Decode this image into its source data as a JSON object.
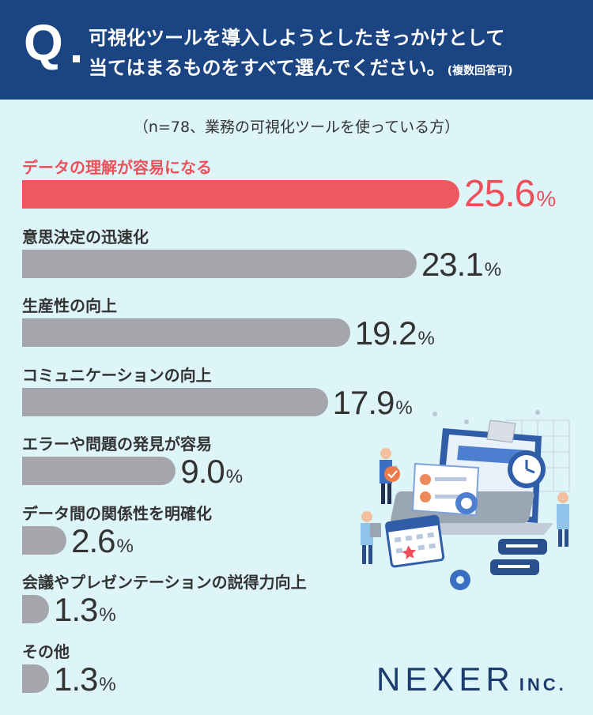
{
  "header": {
    "q_mark": "Q",
    "line1": "可視化ツールを導入しようとしたきっかけとして",
    "line2": "当てはまるものをすべて選んでください。",
    "note": "(複数回答可)"
  },
  "sample_note": "（n=78、業務の可視化ツールを使っている方）",
  "colors": {
    "header_bg": "#1b4582",
    "highlight": "#ee5860",
    "bar": "#a4a6ab",
    "background": "#ddf4f9"
  },
  "chart_data": {
    "type": "bar",
    "orientation": "horizontal",
    "categories": [
      "データの理解が容易になる",
      "意思決定の迅速化",
      "生産性の向上",
      "コミュニケーションの向上",
      "エラーや問題の発見が容易",
      "データ間の関係性を明確化",
      "会議やプレゼンテーションの説得力向上",
      "その他"
    ],
    "values": [
      25.6,
      23.1,
      19.2,
      17.9,
      9.0,
      2.6,
      1.3,
      1.3
    ],
    "value_labels": [
      "25.6",
      "23.1",
      "19.2",
      "17.9",
      "9.0",
      "2.6",
      "1.3",
      "1.3"
    ],
    "unit": "%",
    "highlight_index": 0
  },
  "logo": {
    "main": "NEXER",
    "suffix": "INC."
  }
}
